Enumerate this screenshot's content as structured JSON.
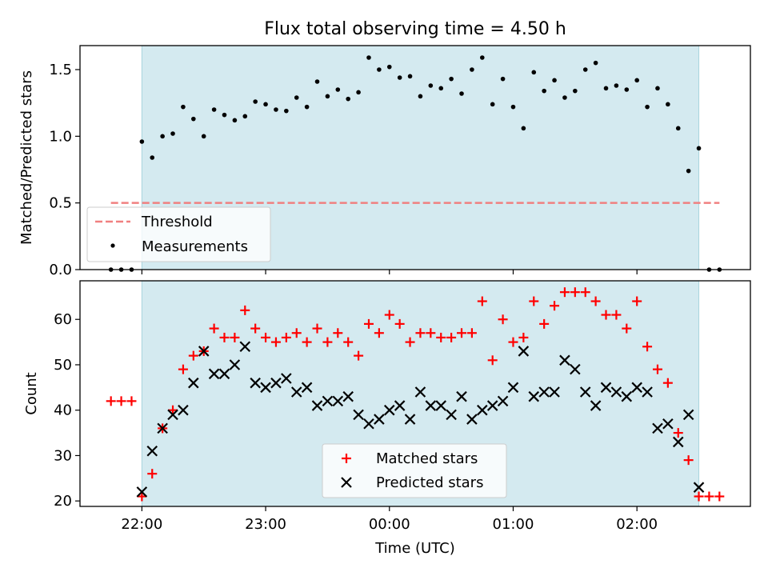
{
  "chart_data": {
    "title": "Flux total observing time = 4.50 h",
    "xlabel": "Time (UTC)",
    "x_tick_labels": [
      "22:00",
      "23:00",
      "00:00",
      "01:00",
      "02:00"
    ],
    "x_tick_minutes": [
      0,
      60,
      120,
      180,
      240
    ],
    "x_range_minutes": [
      -30,
      295
    ],
    "observing_window_minutes": [
      0,
      270
    ],
    "observing_window_color": "#d4eaf0",
    "panels": [
      {
        "type": "scatter",
        "ylabel": "Matched/Predicted stars",
        "ylim": [
          0,
          1.68
        ],
        "y_ticks": [
          0.0,
          0.5,
          1.0,
          1.5
        ],
        "y_tick_labels": [
          "0.0",
          "0.5",
          "1.0",
          "1.5"
        ],
        "legend": {
          "placement": "lower-left",
          "threshold_label": "Threshold",
          "measurements_label": "Measurements"
        },
        "threshold": {
          "value": 0.5,
          "x_range_minutes": [
            -15,
            280
          ],
          "color": "#f08080"
        },
        "measurements": {
          "color": "#000000",
          "x_minutes": [
            -15,
            -10,
            -5,
            0,
            5,
            10,
            15,
            20,
            25,
            30,
            35,
            40,
            45,
            50,
            55,
            60,
            65,
            70,
            75,
            80,
            85,
            90,
            95,
            100,
            105,
            110,
            115,
            120,
            125,
            130,
            135,
            140,
            145,
            150,
            155,
            160,
            165,
            170,
            175,
            180,
            185,
            190,
            195,
            200,
            205,
            210,
            215,
            220,
            225,
            230,
            235,
            240,
            245,
            250,
            255,
            260,
            265,
            270,
            275,
            280
          ],
          "y": [
            0,
            0,
            0,
            0.96,
            0.84,
            1.0,
            1.02,
            1.22,
            1.13,
            1.0,
            1.2,
            1.16,
            1.12,
            1.15,
            1.26,
            1.24,
            1.2,
            1.19,
            1.29,
            1.22,
            1.41,
            1.3,
            1.35,
            1.28,
            1.33,
            1.59,
            1.5,
            1.52,
            1.44,
            1.45,
            1.3,
            1.38,
            1.36,
            1.43,
            1.32,
            1.5,
            1.59,
            1.24,
            1.43,
            1.22,
            1.06,
            1.48,
            1.34,
            1.42,
            1.29,
            1.34,
            1.5,
            1.55,
            1.36,
            1.38,
            1.35,
            1.42,
            1.22,
            1.36,
            1.24,
            1.06,
            0.74,
            0.91,
            0,
            0
          ]
        }
      },
      {
        "type": "scatter",
        "ylabel": "Count",
        "ylim": [
          18.8,
          68.5
        ],
        "y_ticks": [
          20,
          30,
          40,
          50,
          60
        ],
        "y_tick_labels": [
          "20",
          "30",
          "40",
          "50",
          "60"
        ],
        "legend": {
          "placement": "lower-center"
        },
        "series": [
          {
            "name": "Matched stars",
            "marker": "plus",
            "color": "#ff0000",
            "x_minutes": [
              -15,
              -10,
              -5,
              0,
              5,
              10,
              15,
              20,
              25,
              30,
              35,
              40,
              45,
              50,
              55,
              60,
              65,
              70,
              75,
              80,
              85,
              90,
              95,
              100,
              105,
              110,
              115,
              120,
              125,
              130,
              135,
              140,
              145,
              150,
              155,
              160,
              165,
              170,
              175,
              180,
              185,
              190,
              195,
              200,
              205,
              210,
              215,
              220,
              225,
              230,
              235,
              240,
              245,
              250,
              255,
              260,
              265,
              270,
              275,
              280
            ],
            "y": [
              42,
              42,
              42,
              21,
              26,
              36,
              40,
              49,
              52,
              53,
              58,
              56,
              56,
              62,
              58,
              56,
              55,
              56,
              57,
              55,
              58,
              55,
              57,
              55,
              52,
              59,
              57,
              61,
              59,
              55,
              57,
              57,
              56,
              56,
              57,
              57,
              64,
              51,
              60,
              55,
              56,
              64,
              59,
              63,
              66,
              66,
              66,
              64,
              61,
              61,
              58,
              64,
              54,
              49,
              46,
              35,
              29,
              21,
              21,
              21
            ]
          },
          {
            "name": "Predicted stars",
            "marker": "x",
            "color": "#000000",
            "x_minutes": [
              0,
              5,
              10,
              15,
              20,
              25,
              30,
              35,
              40,
              45,
              50,
              55,
              60,
              65,
              70,
              75,
              80,
              85,
              90,
              95,
              100,
              105,
              110,
              115,
              120,
              125,
              130,
              135,
              140,
              145,
              150,
              155,
              160,
              165,
              170,
              175,
              180,
              185,
              190,
              195,
              200,
              205,
              210,
              215,
              220,
              225,
              230,
              235,
              240,
              245,
              250,
              255,
              260,
              265,
              270
            ],
            "y": [
              22,
              31,
              36,
              39,
              40,
              46,
              53,
              48,
              48,
              50,
              54,
              46,
              45,
              46,
              47,
              44,
              45,
              41,
              42,
              42,
              43,
              39,
              37,
              38,
              40,
              41,
              38,
              44,
              41,
              41,
              39,
              43,
              38,
              40,
              41,
              42,
              45,
              53,
              43,
              44,
              44,
              51,
              49,
              44,
              41,
              45,
              44,
              43,
              45,
              44,
              36,
              37,
              33,
              39,
              23
            ]
          }
        ]
      }
    ]
  }
}
